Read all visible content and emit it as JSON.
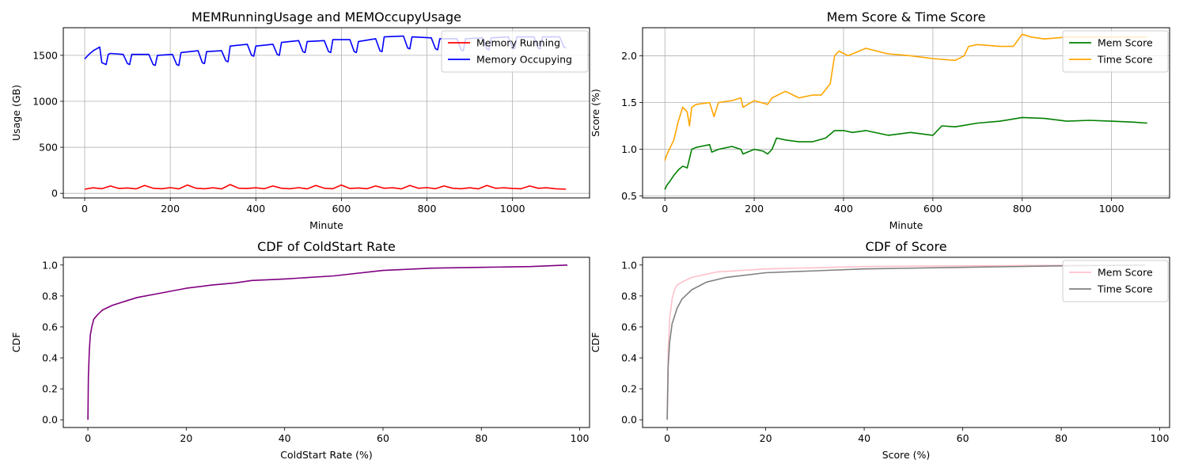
{
  "chart_data": [
    {
      "type": "line",
      "title": "MEMRunningUsage and MEMOccupyUsage",
      "xlabel": "Minute",
      "ylabel": "Usage (GB)",
      "xlim": [
        -50,
        1180
      ],
      "ylim": [
        -50,
        1800
      ],
      "xticks": [
        0,
        200,
        400,
        600,
        800,
        1000
      ],
      "yticks": [
        0,
        500,
        1000,
        1500
      ],
      "grid": true,
      "legend_position": "upper right",
      "series": [
        {
          "name": "Memory Running",
          "color": "#ff0000",
          "x": [
            0,
            20,
            40,
            60,
            80,
            100,
            120,
            140,
            160,
            180,
            200,
            220,
            240,
            260,
            280,
            300,
            320,
            340,
            360,
            380,
            400,
            420,
            440,
            460,
            480,
            500,
            520,
            540,
            560,
            580,
            600,
            620,
            640,
            660,
            680,
            700,
            720,
            740,
            760,
            780,
            800,
            820,
            840,
            860,
            880,
            900,
            920,
            940,
            960,
            980,
            1000,
            1020,
            1040,
            1060,
            1080,
            1100,
            1125
          ],
          "y": [
            45,
            60,
            50,
            80,
            52,
            58,
            48,
            85,
            55,
            50,
            62,
            48,
            90,
            55,
            50,
            60,
            48,
            95,
            55,
            52,
            60,
            50,
            80,
            55,
            50,
            62,
            48,
            85,
            55,
            50,
            90,
            52,
            58,
            50,
            80,
            55,
            60,
            48,
            85,
            55,
            62,
            50,
            80,
            55,
            50,
            60,
            48,
            85,
            55,
            60,
            52,
            50,
            80,
            55,
            60,
            50,
            45
          ]
        },
        {
          "name": "Memory Occupying",
          "color": "#0000ff",
          "x": [
            0,
            10,
            20,
            35,
            40,
            50,
            55,
            60,
            90,
            100,
            105,
            110,
            150,
            160,
            165,
            170,
            205,
            215,
            220,
            225,
            265,
            275,
            280,
            285,
            320,
            330,
            335,
            340,
            380,
            390,
            395,
            400,
            440,
            450,
            455,
            460,
            500,
            510,
            515,
            520,
            560,
            570,
            575,
            580,
            620,
            630,
            635,
            640,
            680,
            690,
            695,
            700,
            745,
            755,
            760,
            765,
            810,
            820,
            825,
            830,
            870,
            880,
            885,
            890,
            930,
            940,
            945,
            950,
            990,
            1000,
            1005,
            1010,
            1050,
            1060,
            1065,
            1070,
            1110,
            1120,
            1125
          ],
          "y": [
            1460,
            1510,
            1550,
            1590,
            1420,
            1400,
            1510,
            1520,
            1510,
            1410,
            1400,
            1510,
            1510,
            1400,
            1390,
            1500,
            1510,
            1400,
            1390,
            1530,
            1550,
            1420,
            1410,
            1540,
            1550,
            1440,
            1430,
            1600,
            1620,
            1500,
            1490,
            1600,
            1620,
            1510,
            1500,
            1640,
            1660,
            1540,
            1530,
            1650,
            1660,
            1540,
            1530,
            1670,
            1670,
            1540,
            1530,
            1650,
            1680,
            1550,
            1540,
            1700,
            1710,
            1580,
            1570,
            1700,
            1690,
            1570,
            1560,
            1680,
            1680,
            1560,
            1550,
            1680,
            1690,
            1570,
            1560,
            1690,
            1700,
            1580,
            1570,
            1700,
            1700,
            1580,
            1570,
            1700,
            1700,
            1590,
            1580
          ]
        }
      ]
    },
    {
      "type": "line",
      "title": "Mem Score & Time Score",
      "xlabel": "Minute",
      "ylabel": "Score (%)",
      "xlim": [
        -50,
        1130
      ],
      "ylim": [
        0.48,
        2.3
      ],
      "xticks": [
        0,
        200,
        400,
        600,
        800,
        1000
      ],
      "yticks": [
        0.5,
        1.0,
        1.5,
        2.0
      ],
      "grid": true,
      "legend_position": "upper right",
      "series": [
        {
          "name": "Mem Score",
          "color": "#008000",
          "x": [
            0,
            5,
            10,
            20,
            30,
            40,
            50,
            55,
            60,
            70,
            100,
            105,
            120,
            150,
            170,
            175,
            200,
            220,
            230,
            240,
            250,
            270,
            300,
            330,
            360,
            380,
            400,
            420,
            450,
            500,
            550,
            600,
            620,
            650,
            700,
            750,
            800,
            850,
            900,
            950,
            1000,
            1050,
            1080
          ],
          "y": [
            0.57,
            0.62,
            0.65,
            0.72,
            0.78,
            0.82,
            0.8,
            0.9,
            1.0,
            1.02,
            1.05,
            0.97,
            1.0,
            1.03,
            1.0,
            0.95,
            1.0,
            0.98,
            0.95,
            1.0,
            1.12,
            1.1,
            1.08,
            1.08,
            1.12,
            1.2,
            1.2,
            1.18,
            1.2,
            1.15,
            1.18,
            1.15,
            1.25,
            1.24,
            1.28,
            1.3,
            1.34,
            1.33,
            1.3,
            1.31,
            1.3,
            1.29,
            1.28
          ]
        },
        {
          "name": "Time Score",
          "color": "#ffa500",
          "x": [
            0,
            5,
            10,
            20,
            30,
            40,
            50,
            55,
            60,
            70,
            100,
            110,
            120,
            150,
            170,
            175,
            200,
            230,
            240,
            270,
            300,
            330,
            350,
            370,
            380,
            390,
            410,
            450,
            500,
            550,
            600,
            650,
            670,
            680,
            700,
            750,
            780,
            800,
            820,
            850,
            900,
            950,
            1000,
            1050,
            1080
          ],
          "y": [
            0.88,
            0.95,
            1.0,
            1.1,
            1.3,
            1.45,
            1.4,
            1.25,
            1.45,
            1.48,
            1.5,
            1.35,
            1.5,
            1.52,
            1.55,
            1.45,
            1.52,
            1.48,
            1.55,
            1.62,
            1.55,
            1.58,
            1.58,
            1.7,
            2.0,
            2.05,
            2.0,
            2.08,
            2.02,
            2.0,
            1.97,
            1.95,
            2.0,
            2.1,
            2.12,
            2.1,
            2.1,
            2.23,
            2.2,
            2.18,
            2.2,
            2.2,
            2.2,
            2.2,
            2.2
          ]
        }
      ]
    },
    {
      "type": "line",
      "title": "CDF of ColdStart Rate",
      "xlabel": "ColdStart Rate (%)",
      "ylabel": "CDF",
      "xlim": [
        -5,
        102
      ],
      "ylim": [
        -0.05,
        1.05
      ],
      "xticks": [
        0,
        20,
        40,
        60,
        80,
        100
      ],
      "yticks": [
        0.0,
        0.2,
        0.4,
        0.6,
        0.8,
        1.0
      ],
      "grid": false,
      "series": [
        {
          "color": "#800080",
          "x": [
            0,
            0.1,
            0.3,
            0.5,
            0.8,
            1.2,
            2,
            3,
            5,
            8,
            10,
            15,
            20,
            25,
            30,
            33.3,
            40,
            50,
            60,
            66.7,
            70,
            80,
            90,
            97.5
          ],
          "y": [
            0.0,
            0.28,
            0.45,
            0.55,
            0.6,
            0.65,
            0.68,
            0.71,
            0.74,
            0.77,
            0.79,
            0.82,
            0.85,
            0.87,
            0.885,
            0.9,
            0.91,
            0.93,
            0.965,
            0.975,
            0.98,
            0.985,
            0.99,
            1.0
          ]
        }
      ]
    },
    {
      "type": "line",
      "title": "CDF of Score",
      "xlabel": "Score (%)",
      "ylabel": "CDF",
      "xlim": [
        -5,
        102
      ],
      "ylim": [
        -0.05,
        1.05
      ],
      "xticks": [
        0,
        20,
        40,
        60,
        80,
        100
      ],
      "yticks": [
        0.0,
        0.2,
        0.4,
        0.6,
        0.8,
        1.0
      ],
      "grid": false,
      "legend_position": "upper right",
      "series": [
        {
          "name": "Mem Score",
          "color": "#ffc0cb",
          "x": [
            0,
            0.2,
            0.5,
            1,
            1.5,
            2,
            3,
            5,
            10,
            20,
            40,
            60,
            80,
            97
          ],
          "y": [
            0.0,
            0.45,
            0.65,
            0.78,
            0.84,
            0.87,
            0.89,
            0.92,
            0.955,
            0.975,
            0.99,
            0.995,
            0.998,
            1.0
          ]
        },
        {
          "name": "Time Score",
          "color": "#808080",
          "x": [
            0,
            0.2,
            0.5,
            1,
            2,
            3,
            5,
            8,
            12,
            20,
            40,
            60,
            80,
            97
          ],
          "y": [
            0.0,
            0.35,
            0.5,
            0.62,
            0.72,
            0.78,
            0.84,
            0.89,
            0.92,
            0.95,
            0.975,
            0.985,
            0.995,
            1.0
          ]
        }
      ]
    }
  ]
}
